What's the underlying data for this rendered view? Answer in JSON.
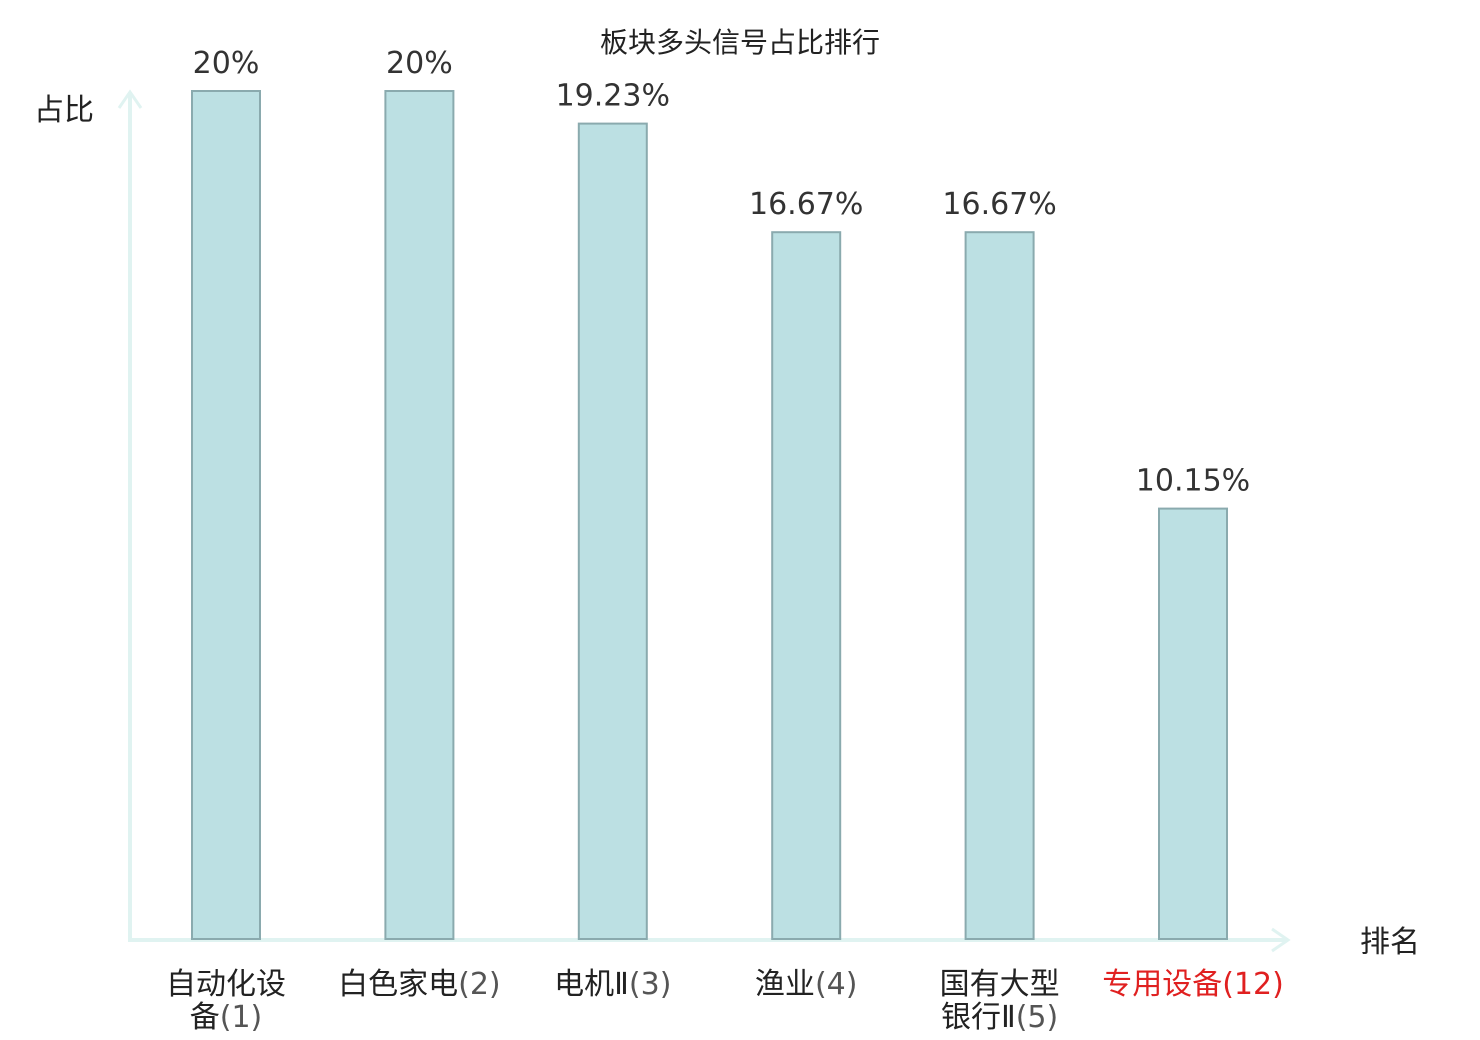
{
  "chart_data": {
    "type": "bar",
    "title": "板块多头信号占比排行",
    "ylabel": "占比",
    "xlabel": "排名",
    "ylim": [
      0,
      20
    ],
    "grid": false,
    "categories": [
      {
        "name_lines": [
          "自动化设",
          "备"
        ],
        "rank": "(1)",
        "highlight": false
      },
      {
        "name_lines": [
          "白色家电"
        ],
        "rank": "(2)",
        "highlight": false
      },
      {
        "name_lines": [
          "电机Ⅱ"
        ],
        "rank": "(3)",
        "highlight": false
      },
      {
        "name_lines": [
          "渔业"
        ],
        "rank": "(4)",
        "highlight": false
      },
      {
        "name_lines": [
          "国有大型",
          "银行Ⅱ"
        ],
        "rank": "(5)",
        "highlight": false
      },
      {
        "name_lines": [
          "专用设备"
        ],
        "rank": "(12)",
        "highlight": true
      }
    ],
    "values": [
      20,
      20,
      19.23,
      16.67,
      16.67,
      10.15
    ],
    "value_labels": [
      "20%",
      "20%",
      "19.23%",
      "16.67%",
      "16.67%",
      "10.15%"
    ]
  },
  "colors": {
    "bar_fill": "#bce0e3",
    "bar_stroke": "#8aaaae",
    "axis": "#e0f3f1",
    "highlight_text": "#e02020",
    "normal_text": "#222222",
    "rank_text": "#555555"
  }
}
